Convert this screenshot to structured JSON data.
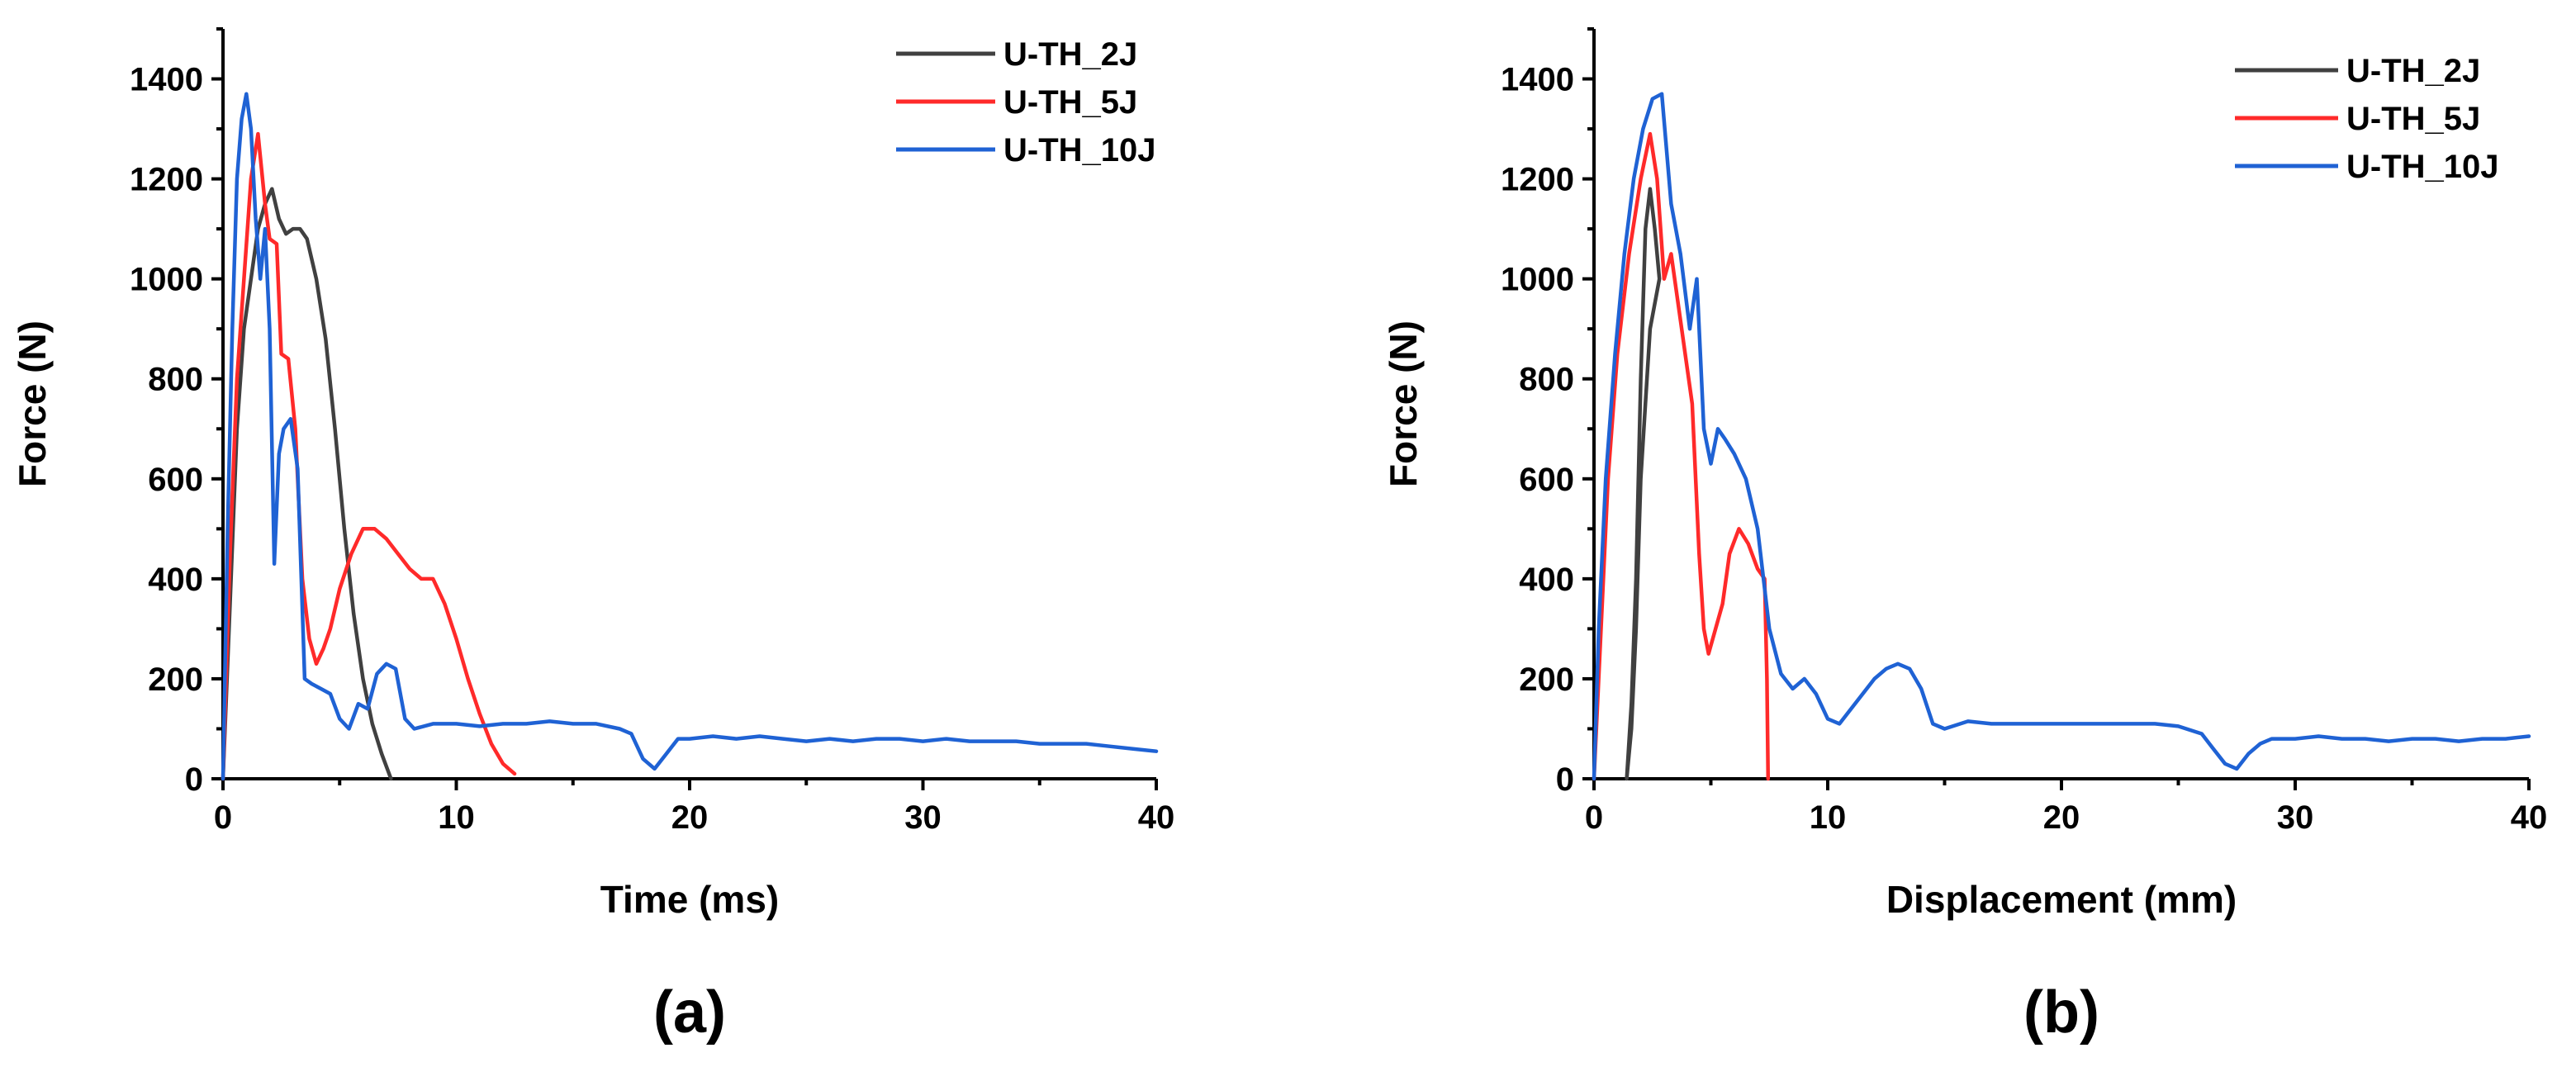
{
  "chart_data": [
    {
      "type": "line",
      "panel_label": "(a)",
      "xlabel": "Time (ms)",
      "ylabel": "Force (N)",
      "xlim": [
        0,
        40
      ],
      "ylim": [
        0,
        1500
      ],
      "xticks": [
        0,
        10,
        20,
        30,
        40
      ],
      "yticks": [
        0,
        200,
        400,
        600,
        800,
        1000,
        1200,
        1400
      ],
      "grid": false,
      "legend_position": "top-right",
      "series": [
        {
          "name": "U-TH_2J",
          "color": "#404040",
          "points": [
            [
              0,
              0
            ],
            [
              0.3,
              350
            ],
            [
              0.6,
              700
            ],
            [
              0.9,
              900
            ],
            [
              1.2,
              1000
            ],
            [
              1.5,
              1100
            ],
            [
              1.8,
              1150
            ],
            [
              2.1,
              1180
            ],
            [
              2.4,
              1120
            ],
            [
              2.7,
              1090
            ],
            [
              3.0,
              1100
            ],
            [
              3.3,
              1100
            ],
            [
              3.6,
              1080
            ],
            [
              4.0,
              1000
            ],
            [
              4.4,
              880
            ],
            [
              4.8,
              700
            ],
            [
              5.2,
              500
            ],
            [
              5.6,
              330
            ],
            [
              6.0,
              200
            ],
            [
              6.4,
              110
            ],
            [
              6.8,
              50
            ],
            [
              7.2,
              0
            ]
          ]
        },
        {
          "name": "U-TH_5J",
          "color": "#ff2a2a",
          "points": [
            [
              0,
              0
            ],
            [
              0.3,
              450
            ],
            [
              0.6,
              800
            ],
            [
              0.9,
              1000
            ],
            [
              1.2,
              1200
            ],
            [
              1.5,
              1290
            ],
            [
              1.8,
              1150
            ],
            [
              2.0,
              1080
            ],
            [
              2.3,
              1070
            ],
            [
              2.5,
              850
            ],
            [
              2.8,
              840
            ],
            [
              3.1,
              700
            ],
            [
              3.4,
              400
            ],
            [
              3.7,
              280
            ],
            [
              4.0,
              230
            ],
            [
              4.3,
              260
            ],
            [
              4.6,
              300
            ],
            [
              5.0,
              380
            ],
            [
              5.5,
              450
            ],
            [
              6.0,
              500
            ],
            [
              6.5,
              500
            ],
            [
              7.0,
              480
            ],
            [
              7.5,
              450
            ],
            [
              8.0,
              420
            ],
            [
              8.5,
              400
            ],
            [
              9.0,
              400
            ],
            [
              9.5,
              350
            ],
            [
              10.0,
              280
            ],
            [
              10.5,
              200
            ],
            [
              11.0,
              130
            ],
            [
              11.5,
              70
            ],
            [
              12.0,
              30
            ],
            [
              12.5,
              10
            ]
          ]
        },
        {
          "name": "U-TH_10J",
          "color": "#1f62d4",
          "points": [
            [
              0,
              0
            ],
            [
              0.2,
              500
            ],
            [
              0.4,
              900
            ],
            [
              0.6,
              1200
            ],
            [
              0.8,
              1320
            ],
            [
              1.0,
              1370
            ],
            [
              1.2,
              1300
            ],
            [
              1.4,
              1120
            ],
            [
              1.6,
              1000
            ],
            [
              1.8,
              1100
            ],
            [
              2.0,
              900
            ],
            [
              2.2,
              430
            ],
            [
              2.4,
              650
            ],
            [
              2.6,
              700
            ],
            [
              2.9,
              720
            ],
            [
              3.2,
              620
            ],
            [
              3.5,
              200
            ],
            [
              3.8,
              190
            ],
            [
              4.2,
              180
            ],
            [
              4.6,
              170
            ],
            [
              5.0,
              120
            ],
            [
              5.4,
              100
            ],
            [
              5.8,
              150
            ],
            [
              6.2,
              140
            ],
            [
              6.6,
              210
            ],
            [
              7.0,
              230
            ],
            [
              7.4,
              220
            ],
            [
              7.8,
              120
            ],
            [
              8.2,
              100
            ],
            [
              9,
              110
            ],
            [
              10,
              110
            ],
            [
              11,
              105
            ],
            [
              12,
              110
            ],
            [
              13,
              110
            ],
            [
              14,
              115
            ],
            [
              15,
              110
            ],
            [
              16,
              110
            ],
            [
              17,
              100
            ],
            [
              17.5,
              90
            ],
            [
              18,
              40
            ],
            [
              18.5,
              20
            ],
            [
              19,
              50
            ],
            [
              19.5,
              80
            ],
            [
              20,
              80
            ],
            [
              21,
              85
            ],
            [
              22,
              80
            ],
            [
              23,
              85
            ],
            [
              24,
              80
            ],
            [
              25,
              75
            ],
            [
              26,
              80
            ],
            [
              27,
              75
            ],
            [
              28,
              80
            ],
            [
              29,
              80
            ],
            [
              30,
              75
            ],
            [
              31,
              80
            ],
            [
              32,
              75
            ],
            [
              33,
              75
            ],
            [
              34,
              75
            ],
            [
              35,
              70
            ],
            [
              36,
              70
            ],
            [
              37,
              70
            ],
            [
              38,
              65
            ],
            [
              39,
              60
            ],
            [
              40,
              55
            ]
          ]
        }
      ]
    },
    {
      "type": "line",
      "panel_label": "(b)",
      "xlabel": "Displacement (mm)",
      "ylabel": "Force (N)",
      "xlim": [
        0,
        40
      ],
      "ylim": [
        0,
        1500
      ],
      "xticks": [
        0,
        10,
        20,
        30,
        40
      ],
      "yticks": [
        0,
        200,
        400,
        600,
        800,
        1000,
        1200,
        1400
      ],
      "grid": false,
      "legend_position": "top-right",
      "series": [
        {
          "name": "U-TH_2J",
          "color": "#404040",
          "points": [
            [
              1.4,
              0
            ],
            [
              1.6,
              150
            ],
            [
              1.8,
              400
            ],
            [
              2.0,
              800
            ],
            [
              2.2,
              1100
            ],
            [
              2.4,
              1180
            ],
            [
              2.6,
              1100
            ],
            [
              2.8,
              1000
            ],
            [
              2.4,
              900
            ],
            [
              2.0,
              600
            ],
            [
              1.8,
              300
            ],
            [
              1.6,
              100
            ],
            [
              1.4,
              0
            ]
          ]
        },
        {
          "name": "U-TH_5J",
          "color": "#ff2a2a",
          "points": [
            [
              0,
              0
            ],
            [
              0.3,
              300
            ],
            [
              0.6,
              600
            ],
            [
              1.0,
              850
            ],
            [
              1.5,
              1050
            ],
            [
              2.0,
              1200
            ],
            [
              2.4,
              1290
            ],
            [
              2.7,
              1200
            ],
            [
              3.0,
              1000
            ],
            [
              3.3,
              1050
            ],
            [
              3.6,
              950
            ],
            [
              3.9,
              850
            ],
            [
              4.2,
              750
            ],
            [
              4.5,
              450
            ],
            [
              4.7,
              300
            ],
            [
              4.9,
              250
            ],
            [
              5.2,
              300
            ],
            [
              5.5,
              350
            ],
            [
              5.8,
              450
            ],
            [
              6.2,
              500
            ],
            [
              6.6,
              470
            ],
            [
              7.0,
              420
            ],
            [
              7.3,
              400
            ],
            [
              7.4,
              200
            ],
            [
              7.45,
              0
            ]
          ]
        },
        {
          "name": "U-TH_10J",
          "color": "#1f62d4",
          "points": [
            [
              0,
              0
            ],
            [
              0.2,
              300
            ],
            [
              0.5,
              600
            ],
            [
              0.9,
              850
            ],
            [
              1.3,
              1050
            ],
            [
              1.7,
              1200
            ],
            [
              2.1,
              1300
            ],
            [
              2.5,
              1360
            ],
            [
              2.9,
              1370
            ],
            [
              3.3,
              1150
            ],
            [
              3.7,
              1050
            ],
            [
              4.1,
              900
            ],
            [
              4.4,
              1000
            ],
            [
              4.7,
              700
            ],
            [
              5.0,
              630
            ],
            [
              5.3,
              700
            ],
            [
              5.6,
              680
            ],
            [
              6.0,
              650
            ],
            [
              6.5,
              600
            ],
            [
              7.0,
              500
            ],
            [
              7.5,
              300
            ],
            [
              8.0,
              210
            ],
            [
              8.5,
              180
            ],
            [
              9.0,
              200
            ],
            [
              9.5,
              170
            ],
            [
              10.0,
              120
            ],
            [
              10.5,
              110
            ],
            [
              11,
              140
            ],
            [
              11.5,
              170
            ],
            [
              12,
              200
            ],
            [
              12.5,
              220
            ],
            [
              13,
              230
            ],
            [
              13.5,
              220
            ],
            [
              14,
              180
            ],
            [
              14.5,
              110
            ],
            [
              15,
              100
            ],
            [
              16,
              115
            ],
            [
              17,
              110
            ],
            [
              18,
              110
            ],
            [
              19,
              110
            ],
            [
              20,
              110
            ],
            [
              21,
              110
            ],
            [
              22,
              110
            ],
            [
              23,
              110
            ],
            [
              24,
              110
            ],
            [
              25,
              105
            ],
            [
              26,
              90
            ],
            [
              26.5,
              60
            ],
            [
              27,
              30
            ],
            [
              27.5,
              20
            ],
            [
              28,
              50
            ],
            [
              28.5,
              70
            ],
            [
              29,
              80
            ],
            [
              30,
              80
            ],
            [
              31,
              85
            ],
            [
              32,
              80
            ],
            [
              33,
              80
            ],
            [
              34,
              75
            ],
            [
              35,
              80
            ],
            [
              36,
              80
            ],
            [
              37,
              75
            ],
            [
              38,
              80
            ],
            [
              39,
              80
            ],
            [
              40,
              85
            ]
          ]
        }
      ]
    }
  ]
}
